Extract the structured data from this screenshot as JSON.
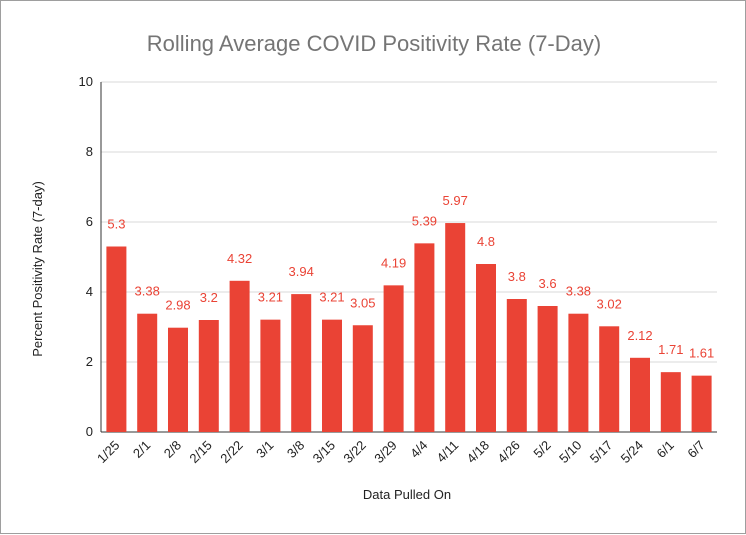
{
  "chart_data": {
    "type": "bar",
    "title": "Rolling Average COVID Positivity Rate (7-Day)",
    "xlabel": "Data Pulled On",
    "ylabel": "Percent Positivity Rate (7-day)",
    "ylim": [
      0,
      10
    ],
    "yticks": [
      "0",
      "2",
      "4",
      "6",
      "8",
      "10"
    ],
    "grid": true,
    "categories": [
      "1/25",
      "2/1",
      "2/8",
      "2/15",
      "2/22",
      "3/1",
      "3/8",
      "3/15",
      "3/22",
      "3/29",
      "4/4",
      "4/11",
      "4/18",
      "4/26",
      "5/2",
      "5/10",
      "5/17",
      "5/24",
      "6/1",
      "6/7"
    ],
    "values": [
      5.3,
      3.38,
      2.98,
      3.2,
      4.32,
      3.21,
      3.94,
      3.21,
      3.05,
      4.19,
      5.39,
      5.97,
      4.8,
      3.8,
      3.6,
      3.38,
      3.02,
      2.12,
      1.71,
      1.61
    ],
    "data_labels": [
      "5.3",
      "3.38",
      "2.98",
      "3.2",
      "4.32",
      "3.21",
      "3.94",
      "3.21",
      "3.05",
      "4.19",
      "5.39",
      "5.97",
      "4.8",
      "3.8",
      "3.6",
      "3.38",
      "3.02",
      "2.12",
      "1.71",
      "1.61"
    ],
    "colors": {
      "bar": "#ea4335",
      "label": "#ea4335",
      "grid": "#d9d9d9",
      "axis": "#333333"
    }
  }
}
